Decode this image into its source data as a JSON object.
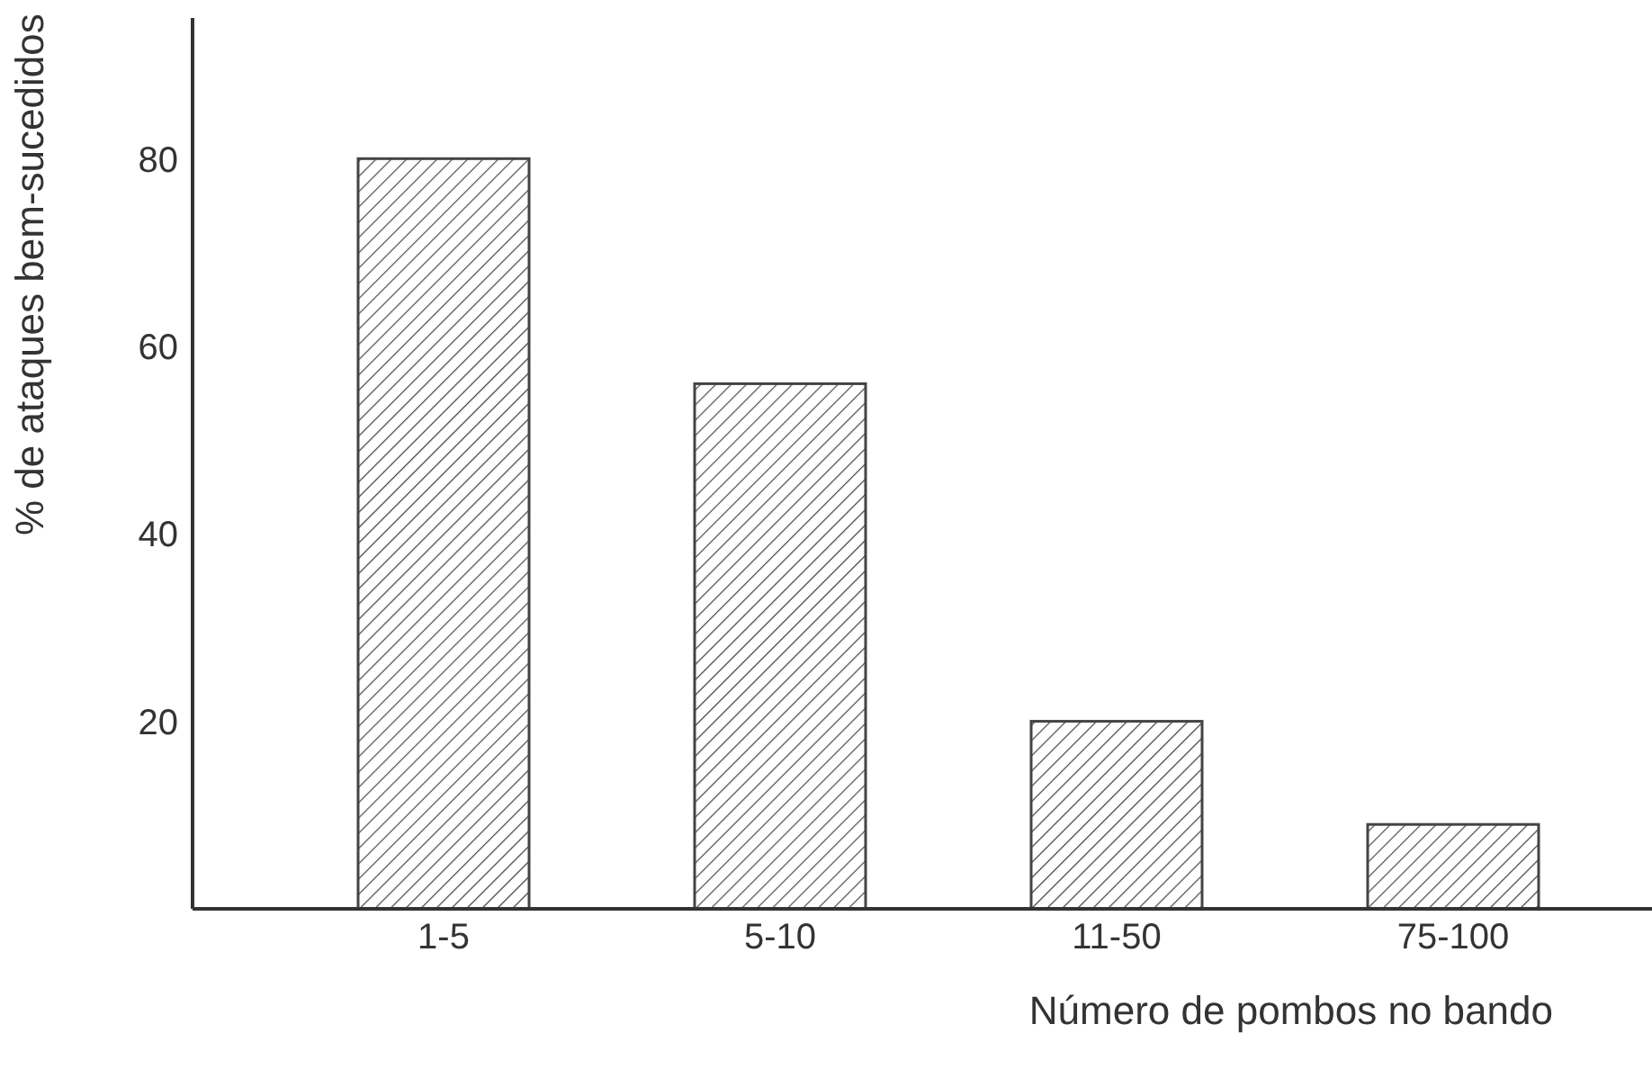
{
  "chart_data": {
    "type": "bar",
    "xlabel": "Número de pombos no bando",
    "ylabel": "% de ataques bem-sucedidos",
    "categories": [
      "1-5",
      "5-10",
      "11-50",
      "75-100"
    ],
    "values": [
      80,
      56,
      20,
      9
    ],
    "color": "#444444",
    "ylim": [
      0,
      95
    ],
    "yticks": [
      20,
      40,
      60,
      80
    ]
  }
}
